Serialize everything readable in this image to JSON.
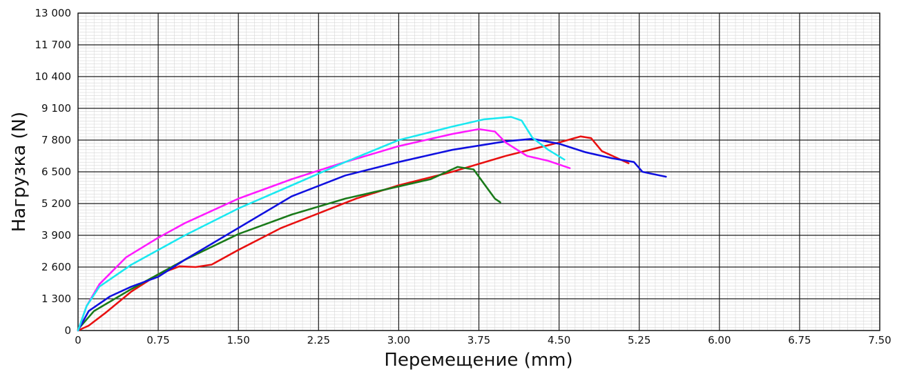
{
  "chart_data": {
    "type": "line",
    "xlabel": "Перемещение (mm)",
    "ylabel": "Нагрузка (N)",
    "xlim": [
      0,
      7.5
    ],
    "ylim": [
      0,
      13000
    ],
    "x_ticks": [
      0,
      0.75,
      1.5,
      2.25,
      3.0,
      3.75,
      4.5,
      5.25,
      6.0,
      6.75,
      7.5
    ],
    "x_tick_labels": [
      "0",
      "0.75",
      "1.50",
      "2.25",
      "3.00",
      "3.75",
      "4.50",
      "5.25",
      "6.00",
      "6.75",
      "7.50"
    ],
    "y_ticks": [
      0,
      1300,
      2600,
      3900,
      5200,
      6500,
      7800,
      9100,
      10400,
      11700,
      13000
    ],
    "y_tick_labels": [
      "0",
      "1 300",
      "2 600",
      "3 900",
      "5 200",
      "6 500",
      "7 800",
      "9 100",
      "10 400",
      "11 700",
      "13 000"
    ],
    "grid": true,
    "minor_grid_divisions": 10,
    "series": [
      {
        "color": "#e81010",
        "points": [
          [
            0,
            0
          ],
          [
            0.1,
            200
          ],
          [
            0.25,
            700
          ],
          [
            0.5,
            1600
          ],
          [
            0.75,
            2300
          ],
          [
            0.95,
            2630
          ],
          [
            1.1,
            2600
          ],
          [
            1.25,
            2700
          ],
          [
            1.5,
            3300
          ],
          [
            1.9,
            4200
          ],
          [
            2.25,
            4800
          ],
          [
            2.6,
            5400
          ],
          [
            3.0,
            5950
          ],
          [
            3.5,
            6500
          ],
          [
            4.0,
            7150
          ],
          [
            4.5,
            7700
          ],
          [
            4.7,
            7950
          ],
          [
            4.8,
            7880
          ],
          [
            4.9,
            7350
          ],
          [
            5.15,
            6850
          ]
        ]
      },
      {
        "color": "#1a7a1a",
        "points": [
          [
            0,
            50
          ],
          [
            0.15,
            800
          ],
          [
            0.5,
            1700
          ],
          [
            1.0,
            2900
          ],
          [
            1.5,
            3950
          ],
          [
            2.0,
            4750
          ],
          [
            2.5,
            5400
          ],
          [
            3.0,
            5900
          ],
          [
            3.3,
            6200
          ],
          [
            3.55,
            6700
          ],
          [
            3.7,
            6600
          ],
          [
            3.8,
            6000
          ],
          [
            3.9,
            5400
          ],
          [
            3.95,
            5250
          ]
        ]
      },
      {
        "color": "#1010e0",
        "points": [
          [
            0,
            0
          ],
          [
            0.1,
            800
          ],
          [
            0.3,
            1400
          ],
          [
            0.5,
            1800
          ],
          [
            0.75,
            2200
          ],
          [
            1.0,
            2900
          ],
          [
            1.5,
            4200
          ],
          [
            2.0,
            5500
          ],
          [
            2.5,
            6350
          ],
          [
            3.0,
            6900
          ],
          [
            3.5,
            7400
          ],
          [
            4.0,
            7750
          ],
          [
            4.25,
            7850
          ],
          [
            4.5,
            7650
          ],
          [
            4.75,
            7300
          ],
          [
            5.0,
            7050
          ],
          [
            5.2,
            6900
          ],
          [
            5.28,
            6500
          ],
          [
            5.5,
            6300
          ]
        ]
      },
      {
        "color": "#ff1aff",
        "points": [
          [
            0,
            0
          ],
          [
            0.08,
            1000
          ],
          [
            0.2,
            1900
          ],
          [
            0.45,
            3000
          ],
          [
            0.75,
            3800
          ],
          [
            1.0,
            4400
          ],
          [
            1.5,
            5400
          ],
          [
            2.0,
            6200
          ],
          [
            2.5,
            6900
          ],
          [
            3.0,
            7550
          ],
          [
            3.5,
            8050
          ],
          [
            3.75,
            8250
          ],
          [
            3.9,
            8150
          ],
          [
            4.0,
            7700
          ],
          [
            4.2,
            7150
          ],
          [
            4.4,
            6950
          ],
          [
            4.6,
            6650
          ]
        ]
      },
      {
        "color": "#1ae8f0",
        "points": [
          [
            0,
            0
          ],
          [
            0.08,
            1000
          ],
          [
            0.2,
            1800
          ],
          [
            0.5,
            2700
          ],
          [
            1.0,
            3900
          ],
          [
            1.5,
            5000
          ],
          [
            2.0,
            5950
          ],
          [
            2.5,
            6900
          ],
          [
            3.0,
            7800
          ],
          [
            3.5,
            8350
          ],
          [
            3.8,
            8650
          ],
          [
            4.05,
            8750
          ],
          [
            4.15,
            8600
          ],
          [
            4.25,
            7900
          ],
          [
            4.4,
            7400
          ],
          [
            4.55,
            7000
          ]
        ]
      }
    ]
  }
}
